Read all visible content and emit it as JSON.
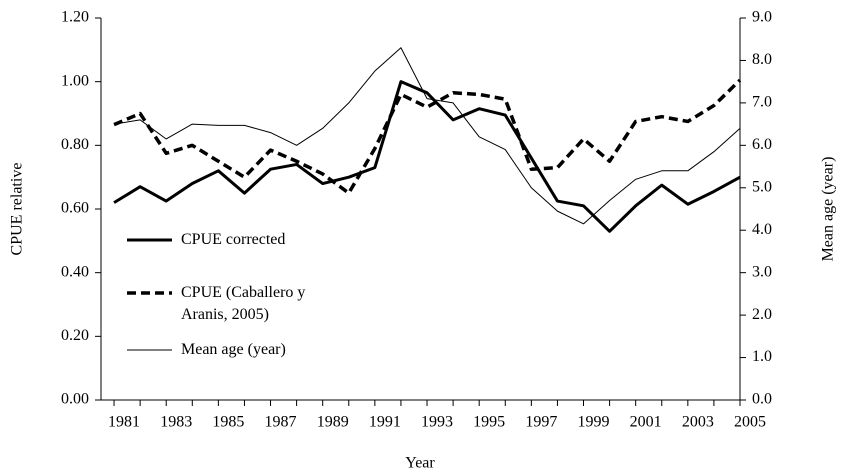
{
  "chart_data": {
    "type": "line",
    "x_label": "Year",
    "y_label": "CPUE relative",
    "y2_label": "Mean age (year)",
    "x": [
      1981,
      1982,
      1983,
      1984,
      1985,
      1986,
      1987,
      1988,
      1989,
      1990,
      1991,
      1992,
      1993,
      1994,
      1995,
      1996,
      1997,
      1998,
      1999,
      2000,
      2001,
      2002,
      2003,
      2004,
      2005
    ],
    "xlim": [
      1980.5,
      2005
    ],
    "xticks": [
      1981,
      1983,
      1985,
      1987,
      1989,
      1991,
      1993,
      1995,
      1997,
      1999,
      2001,
      2003,
      2005
    ],
    "ylim": [
      0,
      1.2
    ],
    "yticks": [
      {
        "value": 0,
        "label": "0.00"
      },
      {
        "value": 0.2,
        "label": "0.20"
      },
      {
        "value": 0.4,
        "label": "0.40"
      },
      {
        "value": 0.6,
        "label": "0.60"
      },
      {
        "value": 0.8,
        "label": "0.80"
      },
      {
        "value": 1,
        "label": "1.00"
      },
      {
        "value": 1.2,
        "label": "1.20"
      }
    ],
    "y2lim": [
      0,
      9
    ],
    "y2ticks": [
      {
        "value": 0,
        "label": "0.0"
      },
      {
        "value": 1,
        "label": "1.0"
      },
      {
        "value": 2,
        "label": "2.0"
      },
      {
        "value": 3,
        "label": "3.0"
      },
      {
        "value": 4,
        "label": "4.0"
      },
      {
        "value": 5,
        "label": "5.0"
      },
      {
        "value": 6,
        "label": "6.0"
      },
      {
        "value": 7,
        "label": "7.0"
      },
      {
        "value": 8,
        "label": "8.0"
      },
      {
        "value": 9,
        "label": "9.0"
      }
    ],
    "legend": "lower-left",
    "series": [
      {
        "name": "CPUE corrected",
        "color": "#000000",
        "width": 3,
        "dash": "solid",
        "values": [
          0.62,
          0.67,
          0.625,
          0.68,
          0.72,
          0.65,
          0.725,
          0.74,
          0.68,
          0.7,
          0.73,
          1.0,
          0.965,
          0.88,
          0.915,
          0.895,
          0.76,
          0.625,
          0.61,
          0.53,
          0.61,
          0.675,
          0.615,
          0.655,
          0.7
        ]
      },
      {
        "name": "CPUE (Caballero y Aranis, 2005)",
        "color": "#000000",
        "width": 3.5,
        "dash": "dashed",
        "values": [
          0.865,
          0.9,
          0.775,
          0.8,
          0.75,
          0.7,
          0.785,
          0.75,
          0.71,
          0.65,
          0.79,
          0.96,
          0.92,
          0.965,
          0.96,
          0.945,
          0.725,
          0.73,
          0.82,
          0.75,
          0.875,
          0.89,
          0.875,
          0.925,
          1.005
        ]
      },
      {
        "name": "Mean age (year)",
        "color": "#000000",
        "width": 1,
        "dash": "solid",
        "axis": "y2",
        "values": [
          6.5,
          6.6,
          6.15,
          6.5,
          6.47,
          6.47,
          6.3,
          6.0,
          6.4,
          7.0,
          7.75,
          8.3,
          7.1,
          7.0,
          6.2,
          5.9,
          5.0,
          4.45,
          4.15,
          4.7,
          5.2,
          5.4,
          5.4,
          5.85,
          6.4
        ]
      }
    ]
  }
}
